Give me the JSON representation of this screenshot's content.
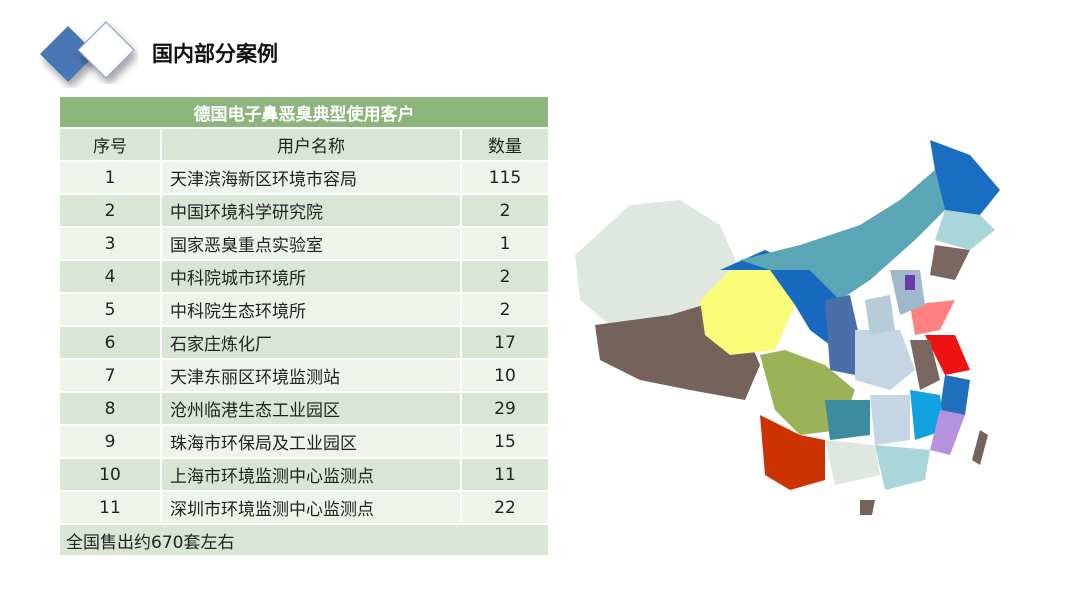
{
  "title": "国内部分案例",
  "table": {
    "caption": "德国电子鼻恶臭典型使用客户",
    "headers": [
      "序号",
      "用户名称",
      "数量"
    ],
    "rows": [
      [
        "1",
        "天津滨海新区环境市容局",
        "115"
      ],
      [
        "2",
        "中国环境科学研究院",
        "2"
      ],
      [
        "3",
        "国家恶臭重点实验室",
        "1"
      ],
      [
        "4",
        "中科院城市环境所",
        "2"
      ],
      [
        "5",
        "中科院生态环境所",
        "2"
      ],
      [
        "6",
        "石家庄炼化厂",
        "17"
      ],
      [
        "7",
        "天津东丽区环境监测站",
        "10"
      ],
      [
        "8",
        "沧州临港生态工业园区",
        "29"
      ],
      [
        "9",
        "珠海市环保局及工业园区",
        "15"
      ],
      [
        "10",
        "上海市环境监测中心监测点",
        "11"
      ],
      [
        "11",
        "深圳市环境监测中心监测点",
        "22"
      ]
    ],
    "footer": "全国售出约670套左右"
  },
  "colors": {
    "header_green": "#8db57d",
    "row_dark": "#d9e5d5",
    "row_light": "#eef3ec",
    "accent_blue": "#4a76b4"
  }
}
